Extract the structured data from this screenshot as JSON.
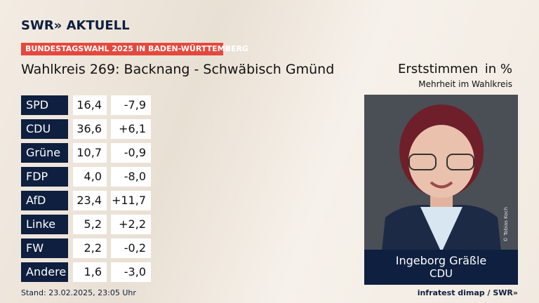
{
  "header": {
    "brand": "SWR» AKTUELL",
    "badge": "BUNDESTAGSWAHL 2025 IN BADEN-WÜRTTEMBERG",
    "title": "Wahlkreis 269: Backnang - Schwäbisch Gmünd",
    "measure": "Erststimmen",
    "unit": "in %",
    "subtitle": "Mehrheit im Wahlkreis"
  },
  "table": {
    "rows": [
      [
        "SPD",
        "16,4",
        "-7,9"
      ],
      [
        "CDU",
        "36,6",
        "+6,1"
      ],
      [
        "Grüne",
        "10,7",
        "-0,9"
      ],
      [
        "FDP",
        "4,0",
        "-8,0"
      ],
      [
        "AfD",
        "23,4",
        "+11,7"
      ],
      [
        "Linke",
        "5,2",
        "+2,2"
      ],
      [
        "FW",
        "2,2",
        "-0,2"
      ],
      [
        "Andere",
        "1,6",
        "-3,0"
      ]
    ]
  },
  "winner": {
    "name": "Ingeborg Gräßle",
    "party": "CDU",
    "photo_credit": "© Tobias Koch"
  },
  "footer": {
    "stand": "Stand: 23.02.2025, 23:05 Uhr",
    "source": "infratest dimap / SWR»"
  }
}
